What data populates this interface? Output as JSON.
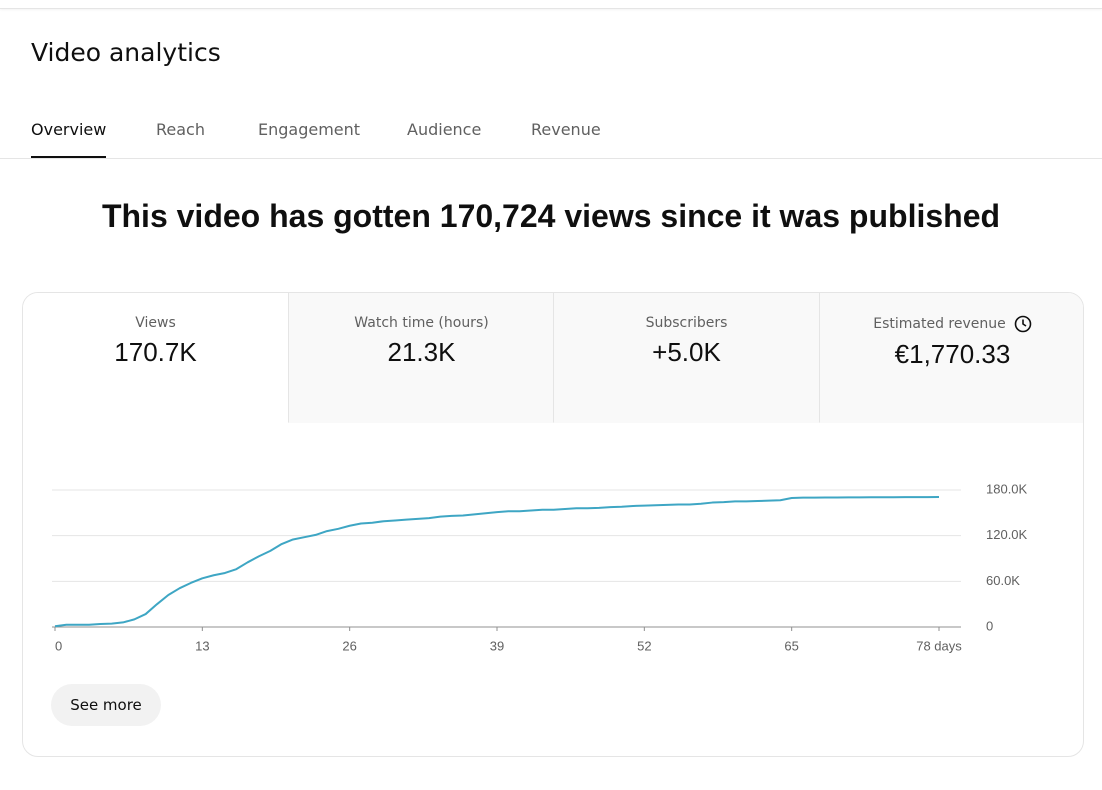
{
  "header": {
    "title": "Video analytics"
  },
  "tabs": [
    "Overview",
    "Reach",
    "Engagement",
    "Audience",
    "Revenue"
  ],
  "headline": "This video has gotten 170,724 views since it was published",
  "metrics": [
    {
      "label": "Views",
      "value": "170.7K"
    },
    {
      "label": "Watch time (hours)",
      "value": "21.3K"
    },
    {
      "label": "Subscribers",
      "value": "+5.0K"
    },
    {
      "label": "Estimated revenue",
      "value": "€1,770.33"
    }
  ],
  "chart_data": {
    "type": "line",
    "color": "#3ea6c4",
    "grid": true,
    "x": [
      0,
      1,
      2,
      3,
      4,
      5,
      6,
      7,
      8,
      9,
      10,
      11,
      12,
      13,
      14,
      15,
      16,
      17,
      18,
      19,
      20,
      21,
      22,
      23,
      24,
      25,
      26,
      27,
      28,
      29,
      30,
      31,
      32,
      33,
      34,
      35,
      36,
      37,
      38,
      39,
      40,
      41,
      42,
      43,
      44,
      45,
      46,
      47,
      48,
      49,
      50,
      51,
      52,
      53,
      54,
      55,
      56,
      57,
      58,
      59,
      60,
      61,
      62,
      63,
      64,
      65,
      66,
      67,
      68,
      69,
      70,
      71,
      72,
      73,
      74,
      75,
      76,
      77,
      78
    ],
    "values": [
      1000,
      3000,
      3000,
      3000,
      4000,
      4500,
      6000,
      10000,
      17000,
      30000,
      42000,
      51000,
      58000,
      64000,
      68000,
      71000,
      76000,
      85000,
      93000,
      100000,
      109000,
      115000,
      118000,
      121000,
      126000,
      129000,
      133000,
      136000,
      137000,
      139000,
      140000,
      141000,
      142000,
      143000,
      145000,
      146000,
      146500,
      148000,
      149500,
      151000,
      152000,
      152000,
      153000,
      154000,
      154000,
      155000,
      156000,
      156000,
      156500,
      157500,
      158000,
      159000,
      159500,
      160000,
      160500,
      161000,
      161000,
      162000,
      163500,
      164000,
      165000,
      165000,
      165500,
      166000,
      166500,
      169500,
      170000,
      170000,
      170100,
      170200,
      170300,
      170300,
      170400,
      170500,
      170500,
      170600,
      170600,
      170700,
      170724
    ],
    "xlim": [
      0,
      78
    ],
    "xticks": [
      0,
      13,
      26,
      39,
      52,
      65,
      {
        "value": 78,
        "label": "78 days"
      }
    ],
    "ylim": [
      0,
      180000
    ],
    "yticks": [
      0,
      {
        "value": 60000,
        "label": "60.0K"
      },
      {
        "value": 120000,
        "label": "120.0K"
      },
      {
        "value": 180000,
        "label": "180.0K"
      }
    ]
  },
  "button": "See more"
}
